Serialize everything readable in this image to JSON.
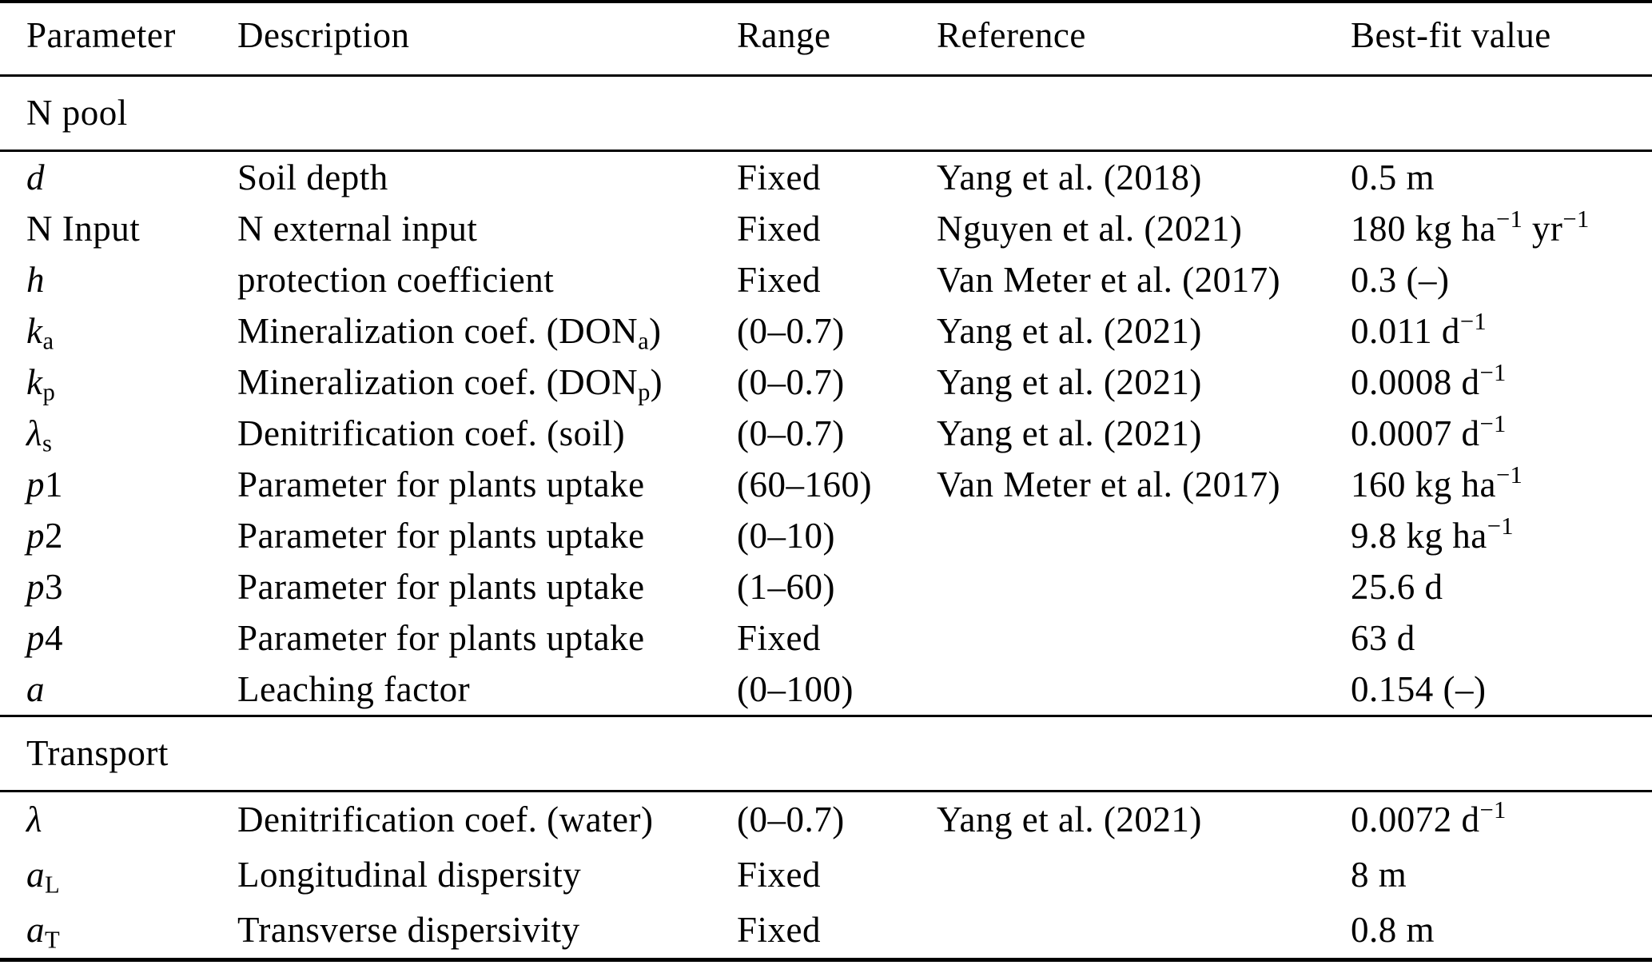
{
  "colors": {
    "text": "#000000",
    "background": "#ffffff",
    "rule": "#000000"
  },
  "table": {
    "columns": [
      "Parameter",
      "Description",
      "Range",
      "Reference",
      "Best-fit value"
    ],
    "sections": [
      {
        "title": "N pool",
        "rows": [
          {
            "param": [
              {
                "t": "d",
                "s": "i"
              }
            ],
            "desc": [
              {
                "t": "Soil depth"
              }
            ],
            "range": "Fixed",
            "ref": "Yang et al. (2018)",
            "value": [
              {
                "t": "0.5 m"
              }
            ]
          },
          {
            "param": [
              {
                "t": "N Input"
              }
            ],
            "desc": [
              {
                "t": "N external input"
              }
            ],
            "range": "Fixed",
            "ref": "Nguyen et al. (2021)",
            "value": [
              {
                "t": "180 kg ha"
              },
              {
                "t": "−1",
                "s": "sup"
              },
              {
                "t": " yr"
              },
              {
                "t": "−1",
                "s": "sup"
              }
            ]
          },
          {
            "param": [
              {
                "t": "h",
                "s": "i"
              }
            ],
            "desc": [
              {
                "t": "protection coefficient"
              }
            ],
            "range": "Fixed",
            "ref": "Van Meter et al. (2017)",
            "value": [
              {
                "t": "0.3 (–)"
              }
            ]
          },
          {
            "param": [
              {
                "t": "k",
                "s": "i"
              },
              {
                "t": "a",
                "s": "sub"
              }
            ],
            "desc": [
              {
                "t": "Mineralization coef. (DON"
              },
              {
                "t": "a",
                "s": "sub"
              },
              {
                "t": ")"
              }
            ],
            "range": "(0–0.7)",
            "ref": "Yang et al. (2021)",
            "value": [
              {
                "t": "0.011 d"
              },
              {
                "t": "−1",
                "s": "sup"
              }
            ]
          },
          {
            "param": [
              {
                "t": "k",
                "s": "i"
              },
              {
                "t": "p",
                "s": "sub"
              }
            ],
            "desc": [
              {
                "t": "Mineralization coef. (DON"
              },
              {
                "t": "p",
                "s": "sub"
              },
              {
                "t": ")"
              }
            ],
            "range": "(0–0.7)",
            "ref": "Yang et al. (2021)",
            "value": [
              {
                "t": "0.0008 d"
              },
              {
                "t": "−1",
                "s": "sup"
              }
            ]
          },
          {
            "param": [
              {
                "t": "λ",
                "s": "i"
              },
              {
                "t": "s",
                "s": "sub"
              }
            ],
            "desc": [
              {
                "t": "Denitrification coef. (soil)"
              }
            ],
            "range": "(0–0.7)",
            "ref": "Yang et al. (2021)",
            "value": [
              {
                "t": "0.0007 d"
              },
              {
                "t": "−1",
                "s": "sup"
              }
            ]
          },
          {
            "param": [
              {
                "t": "p",
                "s": "i"
              },
              {
                "t": "1"
              }
            ],
            "desc": [
              {
                "t": "Parameter for plants uptake"
              }
            ],
            "range": "(60–160)",
            "ref": "Van Meter et al. (2017)",
            "value": [
              {
                "t": "160 kg ha"
              },
              {
                "t": "−1",
                "s": "sup"
              }
            ]
          },
          {
            "param": [
              {
                "t": "p",
                "s": "i"
              },
              {
                "t": "2"
              }
            ],
            "desc": [
              {
                "t": "Parameter for plants uptake"
              }
            ],
            "range": "(0–10)",
            "ref": "",
            "value": [
              {
                "t": "9.8 kg ha"
              },
              {
                "t": "−1",
                "s": "sup"
              }
            ]
          },
          {
            "param": [
              {
                "t": "p",
                "s": "i"
              },
              {
                "t": "3"
              }
            ],
            "desc": [
              {
                "t": "Parameter for plants uptake"
              }
            ],
            "range": "(1–60)",
            "ref": "",
            "value": [
              {
                "t": "25.6 d"
              }
            ]
          },
          {
            "param": [
              {
                "t": "p",
                "s": "i"
              },
              {
                "t": "4"
              }
            ],
            "desc": [
              {
                "t": "Parameter for plants uptake"
              }
            ],
            "range": "Fixed",
            "ref": "",
            "value": [
              {
                "t": "63 d"
              }
            ]
          },
          {
            "param": [
              {
                "t": "a",
                "s": "i"
              }
            ],
            "desc": [
              {
                "t": "Leaching factor"
              }
            ],
            "range": "(0–100)",
            "ref": "",
            "value": [
              {
                "t": "0.154 (–)"
              }
            ]
          }
        ]
      },
      {
        "title": "Transport",
        "rows": [
          {
            "param": [
              {
                "t": "λ",
                "s": "i"
              }
            ],
            "desc": [
              {
                "t": "Denitrification coef. (water)"
              }
            ],
            "range": "(0–0.7)",
            "ref": "Yang et al. (2021)",
            "value": [
              {
                "t": "0.0072 d"
              },
              {
                "t": "−1",
                "s": "sup"
              }
            ]
          },
          {
            "param": [
              {
                "t": "a",
                "s": "i"
              },
              {
                "t": "L",
                "s": "sub"
              }
            ],
            "desc": [
              {
                "t": "Longitudinal dispersity"
              }
            ],
            "range": "Fixed",
            "ref": "",
            "value": [
              {
                "t": "8 m"
              }
            ]
          },
          {
            "param": [
              {
                "t": "a",
                "s": "i"
              },
              {
                "t": "T",
                "s": "sub"
              }
            ],
            "desc": [
              {
                "t": "Transverse dispersivity"
              }
            ],
            "range": "Fixed",
            "ref": "",
            "value": [
              {
                "t": "0.8 m"
              }
            ]
          }
        ]
      }
    ]
  }
}
